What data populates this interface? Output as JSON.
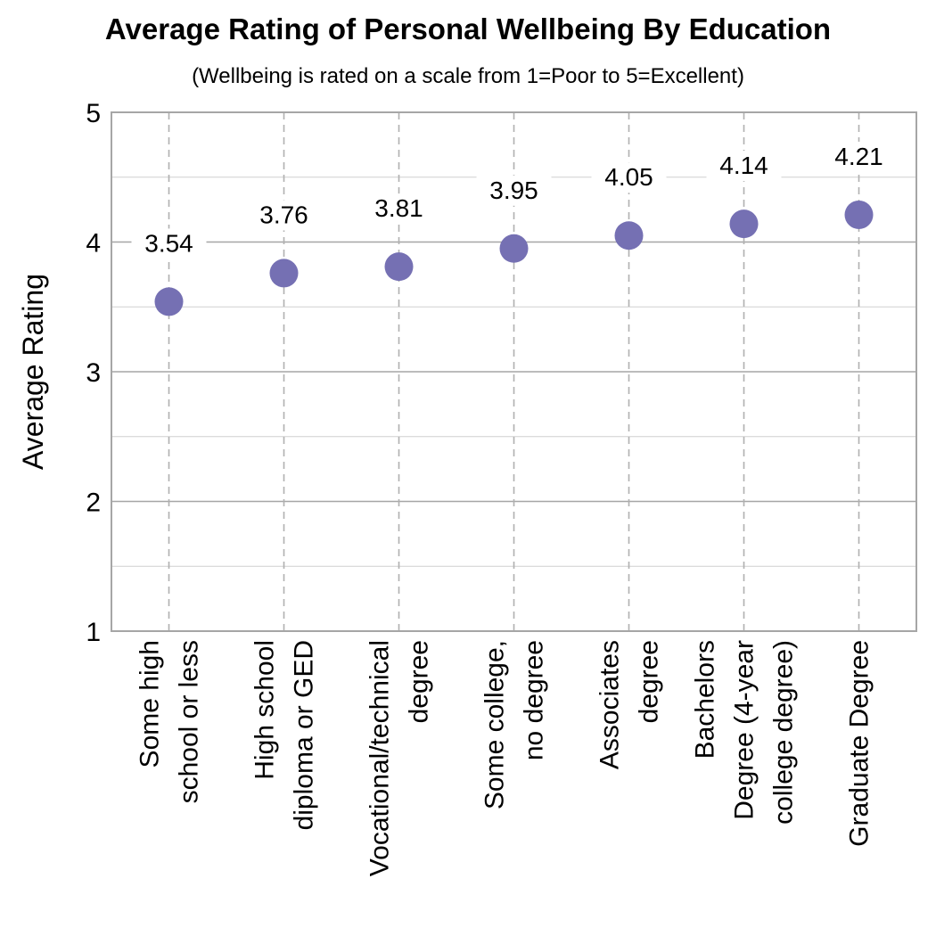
{
  "chart_data": {
    "type": "scatter",
    "title": "Average Rating of Personal Wellbeing By Education",
    "subtitle": "(Wellbeing is rated on a scale from 1=Poor to 5=Excellent)",
    "ylabel": "Average Rating",
    "xlabel": "",
    "ylim": [
      1,
      5
    ],
    "yticks": [
      "1",
      "2",
      "3",
      "4",
      "5"
    ],
    "grid": true,
    "categories": [
      [
        "Some high",
        "school or less"
      ],
      [
        "High school",
        "diploma or GED"
      ],
      [
        "Vocational/technical",
        "degree"
      ],
      [
        "Some college,",
        "no degree"
      ],
      [
        "Associates",
        "degree"
      ],
      [
        "Bachelors",
        "Degree (4-year",
        "college degree)"
      ],
      [
        "Graduate Degree"
      ]
    ],
    "values": [
      3.54,
      3.76,
      3.81,
      3.95,
      4.05,
      4.14,
      4.21
    ],
    "value_labels": [
      "3.54",
      "3.76",
      "3.81",
      "3.95",
      "4.05",
      "4.14",
      "4.21"
    ],
    "marker_color": "#7570b3"
  }
}
